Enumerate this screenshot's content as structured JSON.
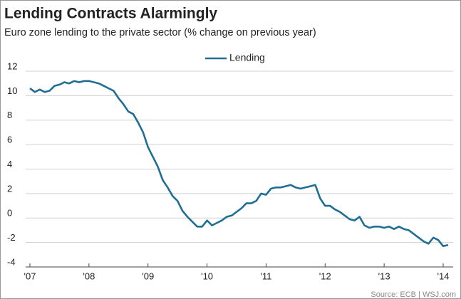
{
  "chart_data": {
    "type": "line",
    "title": "Lending Contracts Alarmingly",
    "subtitle": "Euro zone lending to the private sector (% change on previous year)",
    "source": "Source: ECB | WSJ.com",
    "categories": [
      "'07",
      null,
      null,
      null,
      null,
      null,
      null,
      null,
      null,
      null,
      null,
      null,
      "'08",
      null,
      null,
      null,
      null,
      null,
      null,
      null,
      null,
      null,
      null,
      null,
      "'09",
      null,
      null,
      null,
      null,
      null,
      null,
      null,
      null,
      null,
      null,
      null,
      "'10",
      null,
      null,
      null,
      null,
      null,
      null,
      null,
      null,
      null,
      null,
      null,
      "'11",
      null,
      null,
      null,
      null,
      null,
      null,
      null,
      null,
      null,
      null,
      null,
      "'12",
      null,
      null,
      null,
      null,
      null,
      null,
      null,
      null,
      null,
      null,
      null,
      "'13",
      null,
      null,
      null,
      null,
      null,
      null,
      null,
      null,
      null,
      null,
      null,
      "'14",
      null
    ],
    "series": [
      {
        "name": "Lending",
        "color": "#1f6e93",
        "values": [
          10.6,
          10.3,
          10.5,
          10.3,
          10.4,
          10.8,
          10.9,
          11.1,
          11.0,
          11.2,
          11.1,
          11.2,
          11.2,
          11.1,
          11.0,
          10.8,
          10.6,
          10.4,
          9.8,
          9.3,
          8.7,
          8.5,
          7.8,
          7.0,
          5.8,
          5.0,
          4.2,
          3.1,
          2.5,
          1.8,
          1.4,
          0.6,
          0.1,
          -0.3,
          -0.7,
          -0.7,
          -0.2,
          -0.6,
          -0.4,
          -0.2,
          0.1,
          0.2,
          0.5,
          0.8,
          1.2,
          1.2,
          1.4,
          2.0,
          1.9,
          2.4,
          2.5,
          2.5,
          2.6,
          2.7,
          2.5,
          2.4,
          2.5,
          2.6,
          2.7,
          1.6,
          1.0,
          1.0,
          0.7,
          0.5,
          0.2,
          -0.1,
          -0.2,
          0.1,
          -0.6,
          -0.8,
          -0.7,
          -0.7,
          -0.8,
          -0.7,
          -0.9,
          -0.7,
          -0.9,
          -1.0,
          -1.3,
          -1.6,
          -1.9,
          -2.1,
          -1.6,
          -1.8,
          -2.3,
          -2.2
        ]
      }
    ],
    "ylim": [
      -4,
      12
    ],
    "yticks": [
      -4,
      -2,
      0,
      2,
      4,
      6,
      8,
      10,
      12
    ],
    "grid": true,
    "legend": "top"
  }
}
